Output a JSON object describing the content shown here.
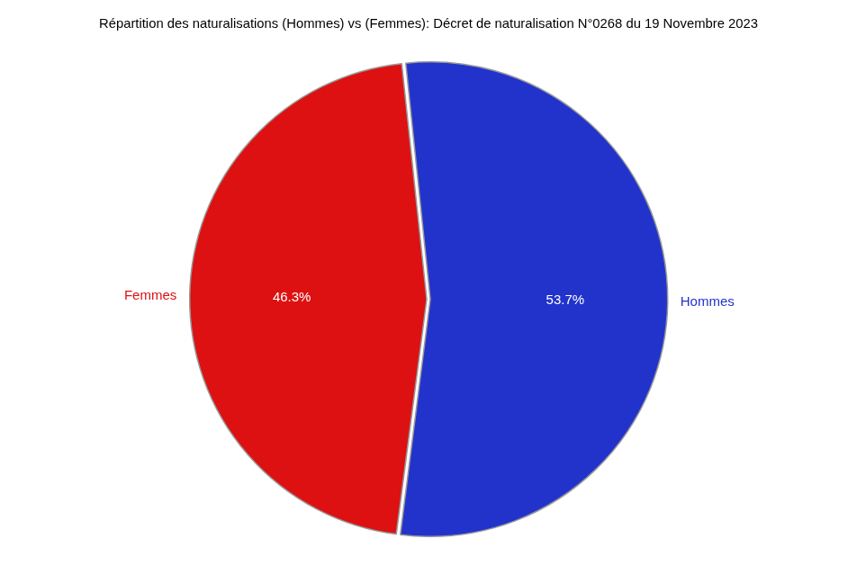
{
  "chart_data": {
    "type": "pie",
    "title": "Répartition des naturalisations (Hommes) vs (Femmes): Décret de naturalisation N°0268 du 19 Novembre 2023",
    "categories": [
      "Hommes",
      "Femmes"
    ],
    "values": [
      53.7,
      46.3
    ],
    "value_labels": [
      "53.7%",
      "46.3%"
    ],
    "colors": [
      "#2233cc",
      "#dd1111"
    ],
    "data_labels": true
  }
}
